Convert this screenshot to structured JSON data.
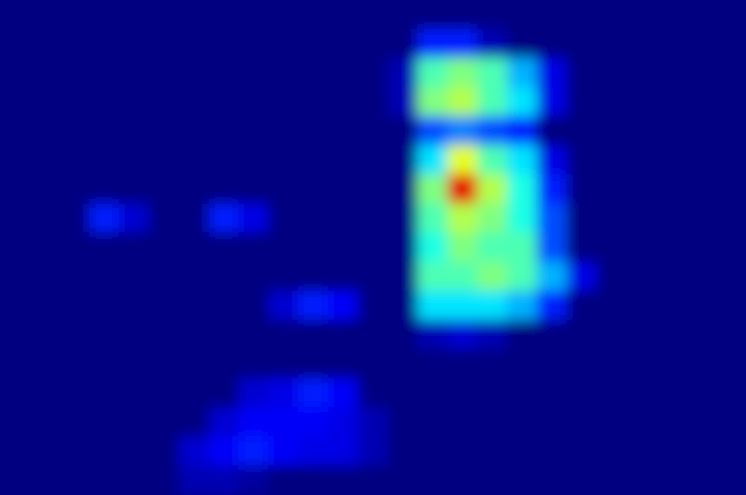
{
  "chart_data": {
    "type": "heatmap",
    "tick_labels": false,
    "color_range": [
      0,
      1
    ],
    "cells": [
      [
        0,
        0,
        0,
        0,
        0,
        0,
        0,
        0,
        0,
        0,
        0,
        0,
        0,
        0,
        0,
        0,
        0,
        0,
        0,
        0,
        0,
        0,
        0,
        0,
        0
      ],
      [
        0,
        0,
        0,
        0,
        0,
        0,
        0,
        0,
        0,
        0,
        0,
        0,
        0,
        0,
        0.15,
        0.15,
        0.05,
        0,
        0,
        0,
        0,
        0,
        0,
        0,
        0
      ],
      [
        0,
        0,
        0,
        0,
        0,
        0,
        0,
        0,
        0,
        0,
        0,
        0,
        0,
        0.05,
        0.45,
        0.5,
        0.45,
        0.3,
        0.1,
        0,
        0,
        0,
        0,
        0,
        0
      ],
      [
        0,
        0,
        0,
        0,
        0,
        0,
        0,
        0,
        0,
        0,
        0,
        0,
        0,
        0.05,
        0.5,
        0.55,
        0.45,
        0.35,
        0.1,
        0,
        0,
        0,
        0,
        0,
        0
      ],
      [
        0,
        0,
        0,
        0,
        0,
        0,
        0,
        0,
        0,
        0,
        0,
        0,
        0,
        0,
        0.2,
        0.25,
        0.2,
        0.15,
        0,
        0,
        0,
        0,
        0,
        0,
        0
      ],
      [
        0,
        0,
        0,
        0,
        0,
        0,
        0,
        0,
        0,
        0,
        0,
        0,
        0,
        0,
        0.35,
        0.6,
        0.45,
        0.35,
        0.1,
        0,
        0,
        0,
        0,
        0,
        0
      ],
      [
        0,
        0,
        0,
        0,
        0,
        0,
        0,
        0,
        0,
        0,
        0,
        0,
        0,
        0,
        0.5,
        0.9,
        0.55,
        0.4,
        0.15,
        0,
        0,
        0,
        0,
        0,
        0
      ],
      [
        0,
        0,
        0,
        0.15,
        0.08,
        0,
        0,
        0.15,
        0.1,
        0,
        0,
        0,
        0,
        0,
        0.45,
        0.55,
        0.5,
        0.4,
        0.2,
        0,
        0,
        0,
        0,
        0,
        0
      ],
      [
        0,
        0,
        0,
        0,
        0,
        0,
        0,
        0,
        0,
        0,
        0,
        0,
        0,
        0,
        0.4,
        0.5,
        0.45,
        0.45,
        0.2,
        0,
        0,
        0,
        0,
        0,
        0
      ],
      [
        0,
        0,
        0,
        0,
        0,
        0,
        0,
        0,
        0,
        0,
        0,
        0,
        0,
        0,
        0.45,
        0.45,
        0.5,
        0.45,
        0.3,
        0.1,
        0,
        0,
        0,
        0,
        0
      ],
      [
        0,
        0,
        0,
        0,
        0,
        0,
        0,
        0,
        0,
        0.08,
        0.15,
        0.12,
        0,
        0,
        0.35,
        0.35,
        0.35,
        0.3,
        0.15,
        0,
        0,
        0,
        0,
        0,
        0
      ],
      [
        0,
        0,
        0,
        0,
        0,
        0,
        0,
        0,
        0,
        0,
        0,
        0,
        0,
        0,
        0.05,
        0.08,
        0.05,
        0,
        0,
        0,
        0,
        0,
        0,
        0,
        0
      ],
      [
        0,
        0,
        0,
        0,
        0,
        0,
        0,
        0,
        0,
        0,
        0,
        0,
        0,
        0,
        0,
        0,
        0,
        0,
        0,
        0,
        0,
        0,
        0,
        0,
        0
      ],
      [
        0,
        0,
        0,
        0,
        0,
        0,
        0,
        0,
        0.08,
        0.1,
        0.15,
        0.12,
        0,
        0,
        0,
        0,
        0,
        0,
        0,
        0,
        0,
        0,
        0,
        0,
        0
      ],
      [
        0,
        0,
        0,
        0,
        0,
        0,
        0,
        0.08,
        0.12,
        0.12,
        0.12,
        0.1,
        0.05,
        0,
        0,
        0,
        0,
        0,
        0,
        0,
        0,
        0,
        0,
        0,
        0
      ],
      [
        0,
        0,
        0,
        0,
        0,
        0,
        0.08,
        0.12,
        0.15,
        0.12,
        0.1,
        0.1,
        0.05,
        0,
        0,
        0,
        0,
        0,
        0,
        0,
        0,
        0,
        0,
        0,
        0
      ],
      [
        0,
        0,
        0,
        0,
        0,
        0,
        0.05,
        0.05,
        0.03,
        0,
        0,
        0,
        0,
        0,
        0,
        0,
        0,
        0,
        0,
        0,
        0,
        0,
        0,
        0,
        0
      ]
    ]
  }
}
